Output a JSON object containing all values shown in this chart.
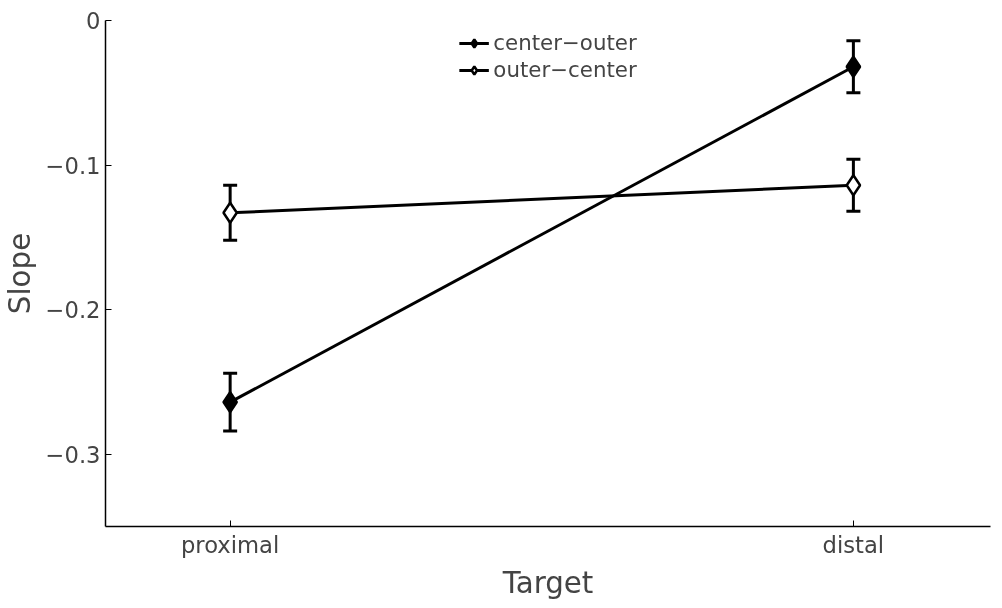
{
  "chart_data": {
    "type": "line",
    "xlabel": "Target",
    "ylabel": "Slope",
    "categories": [
      "proximal",
      "distal"
    ],
    "series": [
      {
        "name": "center−outer",
        "color": "#000000",
        "values": [
          -0.264,
          -0.032
        ],
        "errors": [
          0.02,
          0.018
        ]
      },
      {
        "name": "outer−center",
        "color": "#ffffff",
        "values": [
          -0.133,
          -0.114
        ],
        "errors": [
          0.019,
          0.018
        ]
      }
    ],
    "ylim": [
      -0.35,
      0
    ],
    "yticks": [
      {
        "value": -0.3,
        "label": "−0.3"
      },
      {
        "value": -0.2,
        "label": "−0.2"
      },
      {
        "value": -0.1,
        "label": "−0.1"
      },
      0
    ],
    "marker": "diamond",
    "line_style": "solid",
    "grid": false,
    "legend": "top"
  }
}
